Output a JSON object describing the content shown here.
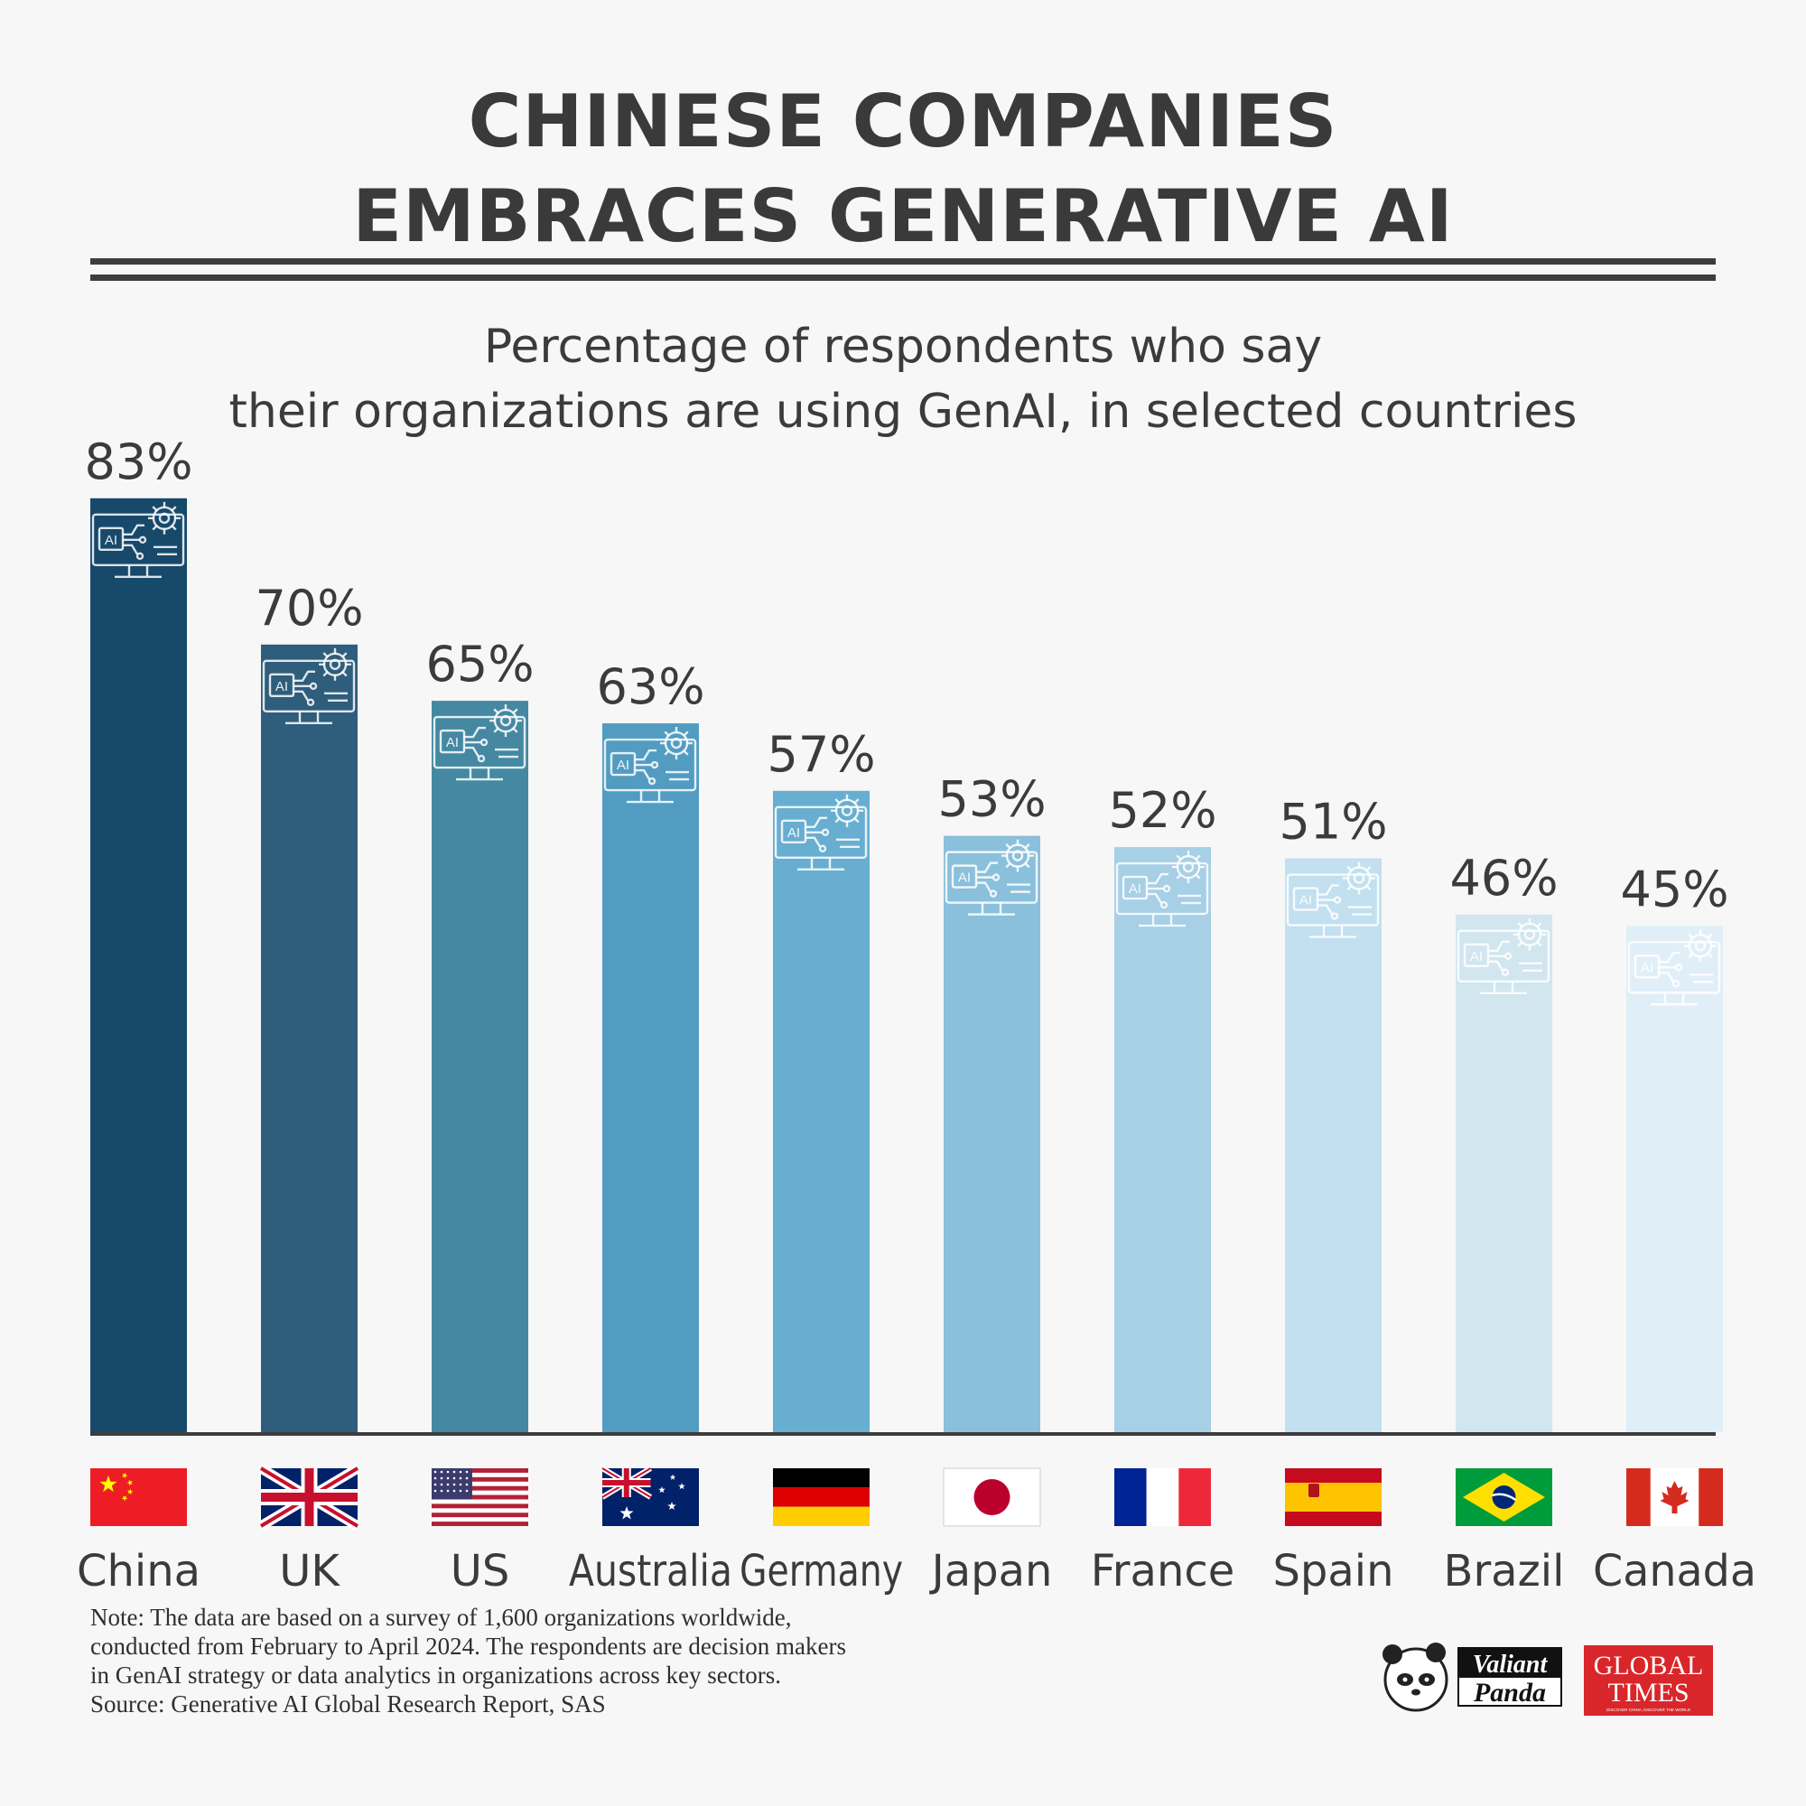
{
  "title": {
    "line1": "CHINESE COMPANIES",
    "line2": "EMBRACES GENERATIVE AI"
  },
  "chart_data": {
    "type": "bar",
    "title": "Percentage of respondents who say their organizations are using GenAI, in selected countries",
    "title_lines": [
      "Percentage of respondents who say",
      "their organizations are using GenAI, in selected countries"
    ],
    "categories": [
      "China",
      "UK",
      "US",
      "Australia",
      "Germany",
      "Japan",
      "France",
      "Spain",
      "Brazil",
      "Canada"
    ],
    "values": [
      83,
      70,
      65,
      63,
      57,
      53,
      52,
      51,
      46,
      45
    ],
    "data_labels": [
      "83%",
      "70%",
      "65%",
      "63%",
      "57%",
      "53%",
      "52%",
      "51%",
      "46%",
      "45%"
    ],
    "ylim": [
      0,
      100
    ],
    "grid": false,
    "legend": "none",
    "bar_colors": [
      "#17496b",
      "#2f5d7c",
      "#4588a2",
      "#529cc2",
      "#68aed1",
      "#8ac0dc",
      "#a7cfe5",
      "#c2e0ef",
      "#d2e6ef",
      "#e0eff7"
    ],
    "bar_icon": "ai-monitor-gear-icon",
    "flag_icons": [
      "china-flag-icon",
      "uk-flag-icon",
      "us-flag-icon",
      "australia-flag-icon",
      "germany-flag-icon",
      "japan-flag-icon",
      "france-flag-icon",
      "spain-flag-icon",
      "brazil-flag-icon",
      "canada-flag-icon"
    ]
  },
  "note": {
    "lines": [
      "Note: The data are based on a survey of 1,600 organizations worldwide,",
      "conducted from February to April 2024. The respondents are decision makers",
      "in GenAI strategy or data analytics in organizations across key sectors.",
      "Source: Generative AI Global Research Report, SAS"
    ]
  },
  "logos": {
    "valiant_panda": {
      "word1": "Valiant",
      "word2": "Panda",
      "icon": "panda-icon"
    },
    "global_times": {
      "word1": "GLOBAL",
      "word2": "TIMES",
      "tagline": "DISCOVER CHINA, DISCOVER THE WORLD"
    }
  },
  "colors": {
    "text": "#3b3b3b",
    "axis": "#3d3d3d",
    "background": "#f7f7f7",
    "global_times_red": "#d9262b"
  }
}
